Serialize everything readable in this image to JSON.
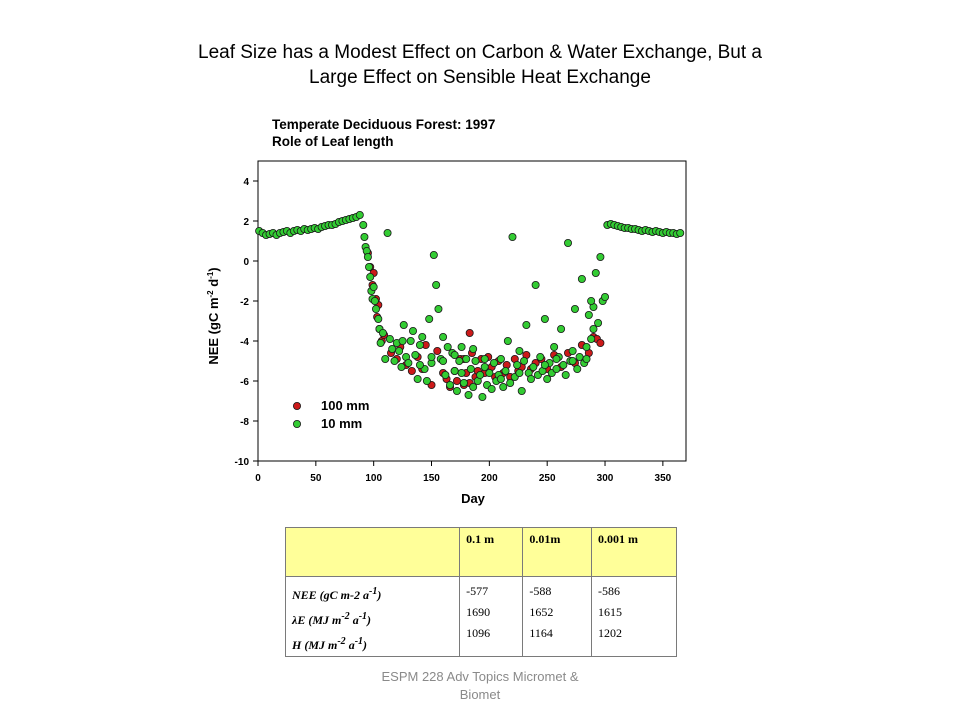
{
  "slide": {
    "title_line1": "Leaf Size has a Modest Effect on Carbon & Water Exchange, But a",
    "title_line2": "Large Effect on Sensible Heat Exchange",
    "footer_line1": "ESPM 228 Adv Topics Micromet &",
    "footer_line2": "Biomet"
  },
  "chart_data": {
    "type": "scatter",
    "title": "Temperate Deciduous Forest: 1997",
    "subtitle": "Role of Leaf length",
    "xlabel": "Day",
    "ylabel": "NEE (gC m-2 d-1)",
    "ylabel_parts": {
      "main": "NEE (gC m",
      "sup1": "-2",
      "mid": " d",
      "sup2": "-1",
      "end": ")"
    },
    "xlim": [
      0,
      370
    ],
    "ylim": [
      -10,
      5
    ],
    "xticks": [
      0,
      50,
      100,
      150,
      200,
      250,
      300,
      350
    ],
    "yticks": [
      -10,
      -8,
      -6,
      -4,
      -2,
      0,
      2,
      4
    ],
    "legend": "lower-left",
    "series": [
      {
        "name": "100 mm",
        "color": "#cc1a1a",
        "points": [
          [
            95,
            0.4
          ],
          [
            97,
            -0.3
          ],
          [
            99,
            -1.2
          ],
          [
            100,
            -0.6
          ],
          [
            102,
            -1.9
          ],
          [
            103,
            -2.8
          ],
          [
            104,
            -2.2
          ],
          [
            105,
            -3.4
          ],
          [
            107,
            -4.0
          ],
          [
            109,
            -3.7
          ],
          [
            115,
            -4.6
          ],
          [
            120,
            -4.9
          ],
          [
            123,
            -4.3
          ],
          [
            128,
            -5.2
          ],
          [
            133,
            -5.5
          ],
          [
            138,
            -4.8
          ],
          [
            142,
            -5.4
          ],
          [
            145,
            -4.2
          ],
          [
            150,
            -6.2
          ],
          [
            155,
            -4.5
          ],
          [
            160,
            -5.6
          ],
          [
            163,
            -5.9
          ],
          [
            166,
            -6.3
          ],
          [
            170,
            -5.5
          ],
          [
            172,
            -6.0
          ],
          [
            175,
            -4.9
          ],
          [
            178,
            -6.2
          ],
          [
            180,
            -5.6
          ],
          [
            183,
            -6.1
          ],
          [
            185,
            -4.6
          ],
          [
            188,
            -5.8
          ],
          [
            190,
            -5.5
          ],
          [
            193,
            -4.9
          ],
          [
            196,
            -5.6
          ],
          [
            199,
            -4.8
          ],
          [
            202,
            -5.3
          ],
          [
            205,
            -5.8
          ],
          [
            208,
            -5.0
          ],
          [
            212,
            -5.6
          ],
          [
            215,
            -5.2
          ],
          [
            218,
            -5.8
          ],
          [
            222,
            -4.9
          ],
          [
            225,
            -5.5
          ],
          [
            228,
            -5.3
          ],
          [
            232,
            -4.7
          ],
          [
            236,
            -5.4
          ],
          [
            240,
            -5.1
          ],
          [
            245,
            -4.9
          ],
          [
            250,
            -5.4
          ],
          [
            256,
            -4.7
          ],
          [
            262,
            -5.3
          ],
          [
            268,
            -4.6
          ],
          [
            274,
            -5.1
          ],
          [
            280,
            -4.2
          ],
          [
            286,
            -4.6
          ],
          [
            290,
            -3.8
          ],
          [
            293,
            -3.9
          ],
          [
            296,
            -4.1
          ],
          [
            183,
            -3.6
          ],
          [
            178,
            -4.9
          ]
        ]
      },
      {
        "name": "10 mm",
        "color": "#33cc33",
        "points": [
          [
            1,
            1.5
          ],
          [
            4,
            1.4
          ],
          [
            7,
            1.3
          ],
          [
            10,
            1.35
          ],
          [
            13,
            1.4
          ],
          [
            16,
            1.3
          ],
          [
            19,
            1.4
          ],
          [
            22,
            1.45
          ],
          [
            25,
            1.5
          ],
          [
            28,
            1.4
          ],
          [
            31,
            1.5
          ],
          [
            34,
            1.55
          ],
          [
            37,
            1.5
          ],
          [
            40,
            1.6
          ],
          [
            43,
            1.55
          ],
          [
            46,
            1.6
          ],
          [
            49,
            1.65
          ],
          [
            52,
            1.6
          ],
          [
            55,
            1.7
          ],
          [
            58,
            1.75
          ],
          [
            61,
            1.8
          ],
          [
            64,
            1.8
          ],
          [
            67,
            1.85
          ],
          [
            70,
            1.95
          ],
          [
            73,
            2.0
          ],
          [
            76,
            2.05
          ],
          [
            79,
            2.1
          ],
          [
            82,
            2.15
          ],
          [
            85,
            2.2
          ],
          [
            88,
            2.3
          ],
          [
            91,
            1.8
          ],
          [
            92,
            1.2
          ],
          [
            93,
            0.7
          ],
          [
            94,
            0.5
          ],
          [
            95,
            0.2
          ],
          [
            96,
            -0.3
          ],
          [
            97,
            -0.8
          ],
          [
            98,
            -1.5
          ],
          [
            99,
            -1.9
          ],
          [
            100,
            -1.3
          ],
          [
            101,
            -2.0
          ],
          [
            102,
            -2.4
          ],
          [
            104,
            -2.9
          ],
          [
            105,
            -3.4
          ],
          [
            106,
            -4.1
          ],
          [
            108,
            -3.6
          ],
          [
            110,
            -4.9
          ],
          [
            112,
            1.4
          ],
          [
            114,
            -3.9
          ],
          [
            116,
            -4.4
          ],
          [
            118,
            -5.0
          ],
          [
            120,
            -4.1
          ],
          [
            122,
            -4.5
          ],
          [
            124,
            -5.3
          ],
          [
            126,
            -3.2
          ],
          [
            128,
            -4.8
          ],
          [
            130,
            -5.1
          ],
          [
            132,
            -4.0
          ],
          [
            134,
            -3.5
          ],
          [
            136,
            -4.7
          ],
          [
            138,
            -5.9
          ],
          [
            140,
            -4.2
          ],
          [
            142,
            -3.8
          ],
          [
            144,
            -5.4
          ],
          [
            146,
            -6.0
          ],
          [
            148,
            -2.9
          ],
          [
            150,
            -5.1
          ],
          [
            152,
            0.3
          ],
          [
            154,
            -1.2
          ],
          [
            156,
            -2.4
          ],
          [
            158,
            -4.9
          ],
          [
            160,
            -3.8
          ],
          [
            162,
            -5.7
          ],
          [
            164,
            -4.3
          ],
          [
            166,
            -6.2
          ],
          [
            168,
            -4.6
          ],
          [
            170,
            -5.5
          ],
          [
            172,
            -6.5
          ],
          [
            174,
            -5.0
          ],
          [
            176,
            -4.3
          ],
          [
            178,
            -6.1
          ],
          [
            180,
            -4.9
          ],
          [
            182,
            -6.7
          ],
          [
            184,
            -5.4
          ],
          [
            186,
            -6.3
          ],
          [
            188,
            -5.0
          ],
          [
            190,
            -6.0
          ],
          [
            192,
            -5.7
          ],
          [
            194,
            -6.8
          ],
          [
            196,
            -5.3
          ],
          [
            198,
            -6.2
          ],
          [
            200,
            -5.6
          ],
          [
            202,
            -6.4
          ],
          [
            204,
            -5.1
          ],
          [
            206,
            -6.0
          ],
          [
            208,
            -5.7
          ],
          [
            210,
            -4.9
          ],
          [
            212,
            -6.3
          ],
          [
            214,
            -5.5
          ],
          [
            216,
            -4.0
          ],
          [
            218,
            -6.1
          ],
          [
            220,
            1.2
          ],
          [
            222,
            -5.8
          ],
          [
            224,
            -5.2
          ],
          [
            226,
            -4.5
          ],
          [
            228,
            -6.5
          ],
          [
            230,
            -5.0
          ],
          [
            232,
            -3.2
          ],
          [
            234,
            -5.6
          ],
          [
            236,
            -5.9
          ],
          [
            238,
            -5.3
          ],
          [
            240,
            -1.2
          ],
          [
            242,
            -5.7
          ],
          [
            244,
            -4.8
          ],
          [
            246,
            -5.5
          ],
          [
            248,
            -2.9
          ],
          [
            250,
            -5.9
          ],
          [
            252,
            -5.1
          ],
          [
            254,
            -5.6
          ],
          [
            256,
            -4.3
          ],
          [
            258,
            -5.4
          ],
          [
            260,
            -4.8
          ],
          [
            262,
            -3.4
          ],
          [
            264,
            -5.2
          ],
          [
            266,
            -5.7
          ],
          [
            268,
            0.9
          ],
          [
            270,
            -5.0
          ],
          [
            272,
            -4.5
          ],
          [
            274,
            -2.4
          ],
          [
            276,
            -5.4
          ],
          [
            278,
            -4.8
          ],
          [
            280,
            -0.9
          ],
          [
            282,
            -5.1
          ],
          [
            284,
            -4.3
          ],
          [
            286,
            -2.7
          ],
          [
            288,
            -3.9
          ],
          [
            290,
            -2.3
          ],
          [
            292,
            -0.6
          ],
          [
            294,
            -3.1
          ],
          [
            296,
            0.2
          ],
          [
            298,
            -2.0
          ],
          [
            300,
            -1.8
          ],
          [
            302,
            1.8
          ],
          [
            305,
            1.85
          ],
          [
            308,
            1.8
          ],
          [
            311,
            1.75
          ],
          [
            314,
            1.7
          ],
          [
            317,
            1.65
          ],
          [
            320,
            1.65
          ],
          [
            323,
            1.6
          ],
          [
            326,
            1.6
          ],
          [
            329,
            1.55
          ],
          [
            332,
            1.5
          ],
          [
            335,
            1.55
          ],
          [
            338,
            1.5
          ],
          [
            341,
            1.45
          ],
          [
            344,
            1.5
          ],
          [
            347,
            1.45
          ],
          [
            350,
            1.4
          ],
          [
            353,
            1.45
          ],
          [
            356,
            1.4
          ],
          [
            359,
            1.4
          ],
          [
            362,
            1.35
          ],
          [
            365,
            1.4
          ],
          [
            176,
            -5.6
          ],
          [
            186,
            -4.4
          ],
          [
            196,
            -4.9
          ],
          [
            210,
            -5.9
          ],
          [
            226,
            -5.6
          ],
          [
            248,
            -5.2
          ],
          [
            258,
            -4.9
          ],
          [
            272,
            -5.0
          ],
          [
            284,
            -4.9
          ],
          [
            288,
            -2.0
          ],
          [
            290,
            -3.4
          ],
          [
            160,
            -5.0
          ],
          [
            170,
            -4.7
          ],
          [
            150,
            -4.8
          ],
          [
            140,
            -5.2
          ],
          [
            125,
            -4.0
          ]
        ]
      }
    ]
  },
  "table": {
    "col_headers": [
      "0.1 m",
      "0.01m",
      "0.001 m"
    ],
    "row_labels": [
      {
        "main": "NEE (gC m-2 a",
        "sup": "-1",
        "end": ")"
      },
      {
        "lambda": "λ",
        "main": "E (MJ m",
        "sup1": "-2",
        "mid": " a",
        "sup2": "-1",
        "end": ")"
      },
      {
        "main": "H (MJ m",
        "sup1": "-2",
        "mid": " a",
        "sup2": "-1",
        "end": ")"
      }
    ],
    "columns": [
      [
        "-577",
        "1690",
        "1096"
      ],
      [
        "-588",
        "1652",
        "1164"
      ],
      [
        "-586",
        "1615",
        "1202"
      ]
    ]
  }
}
